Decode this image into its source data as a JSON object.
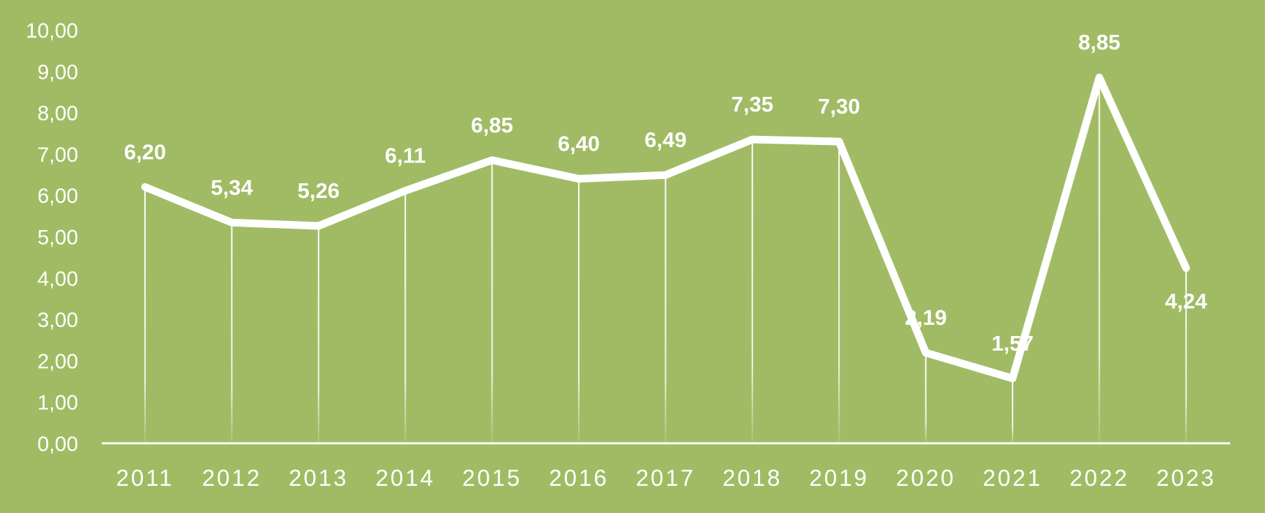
{
  "chart_data": {
    "type": "line",
    "categories": [
      "2011",
      "2012",
      "2013",
      "2014",
      "2015",
      "2016",
      "2017",
      "2018",
      "2019",
      "2020",
      "2021",
      "2022",
      "2023"
    ],
    "values": [
      6.2,
      5.34,
      5.26,
      6.11,
      6.85,
      6.4,
      6.49,
      7.35,
      7.3,
      2.19,
      1.57,
      8.85,
      4.24
    ],
    "data_labels": [
      "6,20",
      "5,34",
      "5,26",
      "6,11",
      "6,85",
      "6,40",
      "6,49",
      "7,35",
      "7,30",
      "2,19",
      "1,57",
      "8,85",
      "4,24"
    ],
    "y_ticks": [
      "0,00",
      "1,00",
      "2,00",
      "3,00",
      "4,00",
      "5,00",
      "6,00",
      "7,00",
      "8,00",
      "9,00",
      "10,00"
    ],
    "ylim": [
      0,
      10
    ],
    "grid": false,
    "drop_lines": true,
    "legend": "none"
  },
  "colors": {
    "background": "#a1bb65",
    "line": "#ffffff",
    "text": "#ffffff"
  }
}
